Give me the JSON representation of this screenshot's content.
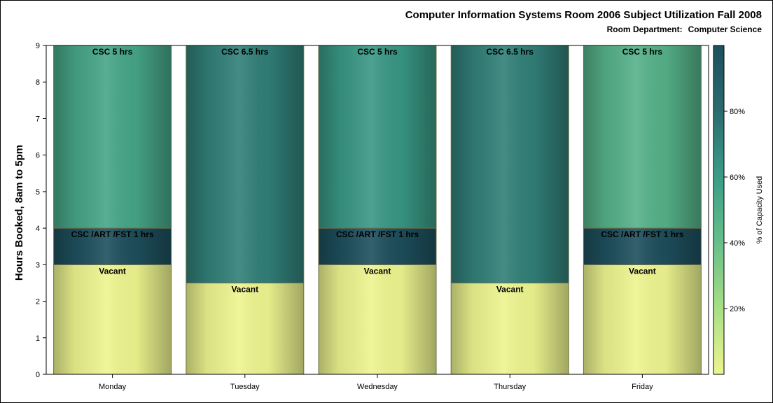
{
  "title": "Computer Information Systems Room 2006 Subject Utilization Fall 2008",
  "subtitle_label": "Room Department:",
  "subtitle_value": "Computer Science",
  "chart_data": {
    "type": "bar",
    "stacked": true,
    "categories": [
      "Monday",
      "Tuesday",
      "Wednesday",
      "Thursday",
      "Friday"
    ],
    "ylabel": "Hours Booked, 8am to 5pm",
    "ylim": [
      0,
      9
    ],
    "yticks": [
      0,
      1,
      2,
      3,
      4,
      5,
      6,
      7,
      8,
      9
    ],
    "bars": [
      {
        "category": "Monday",
        "segments": [
          {
            "label": "Vacant",
            "value": 3,
            "pct_capacity_used": 0
          },
          {
            "label": "CSC /ART /FST 1 hrs",
            "value": 1,
            "pct_capacity_used": 100
          },
          {
            "label": "CSC 5 hrs",
            "value": 5,
            "pct_capacity_used": 55
          }
        ]
      },
      {
        "category": "Tuesday",
        "segments": [
          {
            "label": "Vacant",
            "value": 2.5,
            "pct_capacity_used": 0
          },
          {
            "label": "CSC 6.5 hrs",
            "value": 6.5,
            "pct_capacity_used": 72
          }
        ]
      },
      {
        "category": "Wednesday",
        "segments": [
          {
            "label": "Vacant",
            "value": 3,
            "pct_capacity_used": 0
          },
          {
            "label": "CSC /ART /FST 1 hrs",
            "value": 1,
            "pct_capacity_used": 100
          },
          {
            "label": "CSC 5 hrs",
            "value": 5,
            "pct_capacity_used": 62
          }
        ]
      },
      {
        "category": "Thursday",
        "segments": [
          {
            "label": "Vacant",
            "value": 2.5,
            "pct_capacity_used": 0
          },
          {
            "label": "CSC 6.5 hrs",
            "value": 6.5,
            "pct_capacity_used": 72
          }
        ]
      },
      {
        "category": "Friday",
        "segments": [
          {
            "label": "Vacant",
            "value": 3,
            "pct_capacity_used": 0
          },
          {
            "label": "CSC /ART /FST 1 hrs",
            "value": 1,
            "pct_capacity_used": 100
          },
          {
            "label": "CSC 5 hrs",
            "value": 5,
            "pct_capacity_used": 48
          }
        ]
      }
    ],
    "colorbar": {
      "label": "% of Capacity Used",
      "ticks": [
        "20%",
        "40%",
        "60%",
        "80%"
      ],
      "tick_values": [
        20,
        40,
        60,
        80
      ],
      "range": [
        0,
        100
      ],
      "stops": [
        "#edf58f",
        "#a8df85",
        "#66bf8a",
        "#3b9c86",
        "#2a6b6f",
        "#1d4f5c"
      ]
    },
    "grid": false
  }
}
